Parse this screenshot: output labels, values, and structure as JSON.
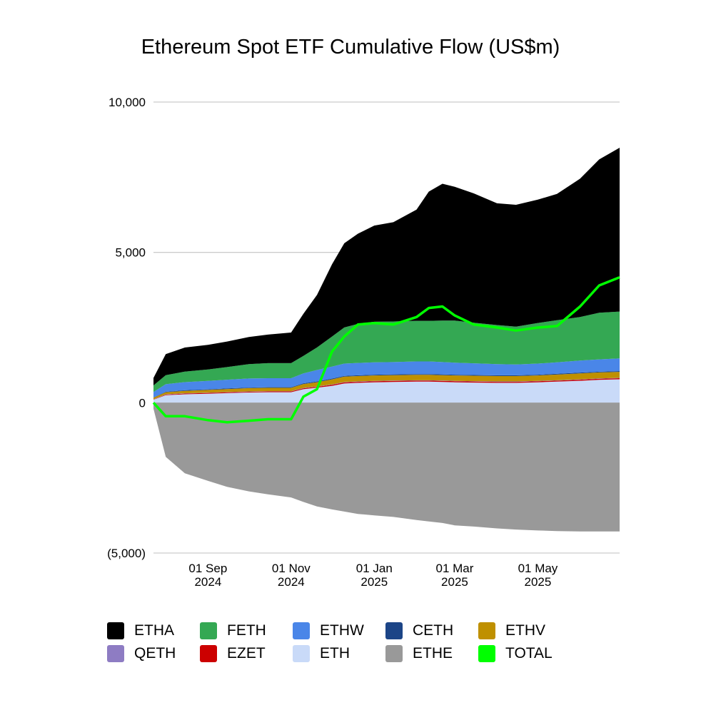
{
  "chart_data": {
    "type": "area",
    "title": "Ethereum Spot ETF Cumulative Flow (US$m)",
    "xlabel": "",
    "ylabel": "",
    "ylim": [
      -5000,
      10000
    ],
    "yticks": [
      {
        "value": 10000,
        "label": "10,000"
      },
      {
        "value": 5000,
        "label": "5,000"
      },
      {
        "value": 0,
        "label": "0"
      },
      {
        "value": -5000,
        "label": "(5,000)"
      }
    ],
    "xlim": [
      "2024-07-23",
      "2025-06-30"
    ],
    "xticks": [
      {
        "date": "2024-09-01",
        "label": [
          "01 Sep",
          "2024"
        ]
      },
      {
        "date": "2024-11-01",
        "label": [
          "01 Nov",
          "2024"
        ]
      },
      {
        "date": "2025-01-01",
        "label": [
          "01 Jan",
          "2025"
        ]
      },
      {
        "date": "2025-03-01",
        "label": [
          "01 Mar",
          "2025"
        ]
      },
      {
        "date": "2025-05-01",
        "label": [
          "01 May",
          "2025"
        ]
      }
    ],
    "grid": true,
    "legend_position": "bottom",
    "x": [
      "2024-07-23",
      "2024-08-01",
      "2024-08-15",
      "2024-09-01",
      "2024-09-15",
      "2024-10-01",
      "2024-10-15",
      "2024-11-01",
      "2024-11-10",
      "2024-11-20",
      "2024-12-01",
      "2024-12-10",
      "2024-12-20",
      "2025-01-01",
      "2025-01-15",
      "2025-02-01",
      "2025-02-10",
      "2025-02-20",
      "2025-03-01",
      "2025-03-15",
      "2025-04-01",
      "2025-04-15",
      "2025-05-01",
      "2025-05-15",
      "2025-06-01",
      "2025-06-15",
      "2025-06-30"
    ],
    "series": [
      {
        "name": "ETH",
        "color": "#c9daf8",
        "values": [
          100,
          250,
          280,
          300,
          320,
          340,
          350,
          350,
          450,
          500,
          560,
          640,
          660,
          680,
          690,
          700,
          700,
          690,
          680,
          670,
          660,
          660,
          680,
          700,
          730,
          760,
          780
        ]
      },
      {
        "name": "EZET",
        "color": "#cc0000",
        "values": [
          10,
          20,
          25,
          25,
          25,
          25,
          25,
          25,
          30,
          30,
          35,
          35,
          35,
          35,
          35,
          35,
          35,
          35,
          35,
          35,
          35,
          35,
          35,
          35,
          35,
          35,
          35
        ]
      },
      {
        "name": "QETH",
        "color": "#8e7cc3",
        "values": [
          5,
          10,
          10,
          10,
          10,
          10,
          10,
          10,
          12,
          12,
          12,
          12,
          12,
          12,
          12,
          12,
          12,
          12,
          12,
          12,
          12,
          12,
          12,
          12,
          12,
          12,
          12
        ]
      },
      {
        "name": "ETHV",
        "color": "#bf9000",
        "values": [
          50,
          70,
          80,
          90,
          100,
          110,
          110,
          110,
          130,
          140,
          170,
          180,
          180,
          180,
          180,
          180,
          180,
          180,
          180,
          180,
          180,
          180,
          180,
          190,
          200,
          200,
          200
        ]
      },
      {
        "name": "CETH",
        "color": "#1c4587",
        "values": [
          10,
          15,
          20,
          20,
          20,
          20,
          20,
          20,
          25,
          25,
          25,
          25,
          25,
          25,
          25,
          25,
          25,
          25,
          25,
          25,
          25,
          25,
          25,
          25,
          25,
          25,
          25
        ]
      },
      {
        "name": "ETHW",
        "color": "#4a86e8",
        "values": [
          180,
          250,
          270,
          280,
          290,
          300,
          300,
          300,
          330,
          380,
          400,
          410,
          410,
          410,
          410,
          420,
          420,
          410,
          400,
          390,
          370,
          360,
          370,
          380,
          400,
          410,
          420
        ]
      },
      {
        "name": "FETH",
        "color": "#34a853",
        "values": [
          220,
          300,
          350,
          380,
          420,
          480,
          500,
          500,
          580,
          750,
          1000,
          1200,
          1300,
          1350,
          1350,
          1350,
          1350,
          1380,
          1400,
          1350,
          1300,
          1260,
          1350,
          1400,
          1450,
          1550,
          1560
        ]
      },
      {
        "name": "ETHA",
        "color": "#000000",
        "values": [
          250,
          700,
          800,
          820,
          850,
          900,
          950,
          1020,
          1400,
          1750,
          2400,
          2800,
          3000,
          3200,
          3300,
          3700,
          4300,
          4550,
          4450,
          4300,
          4050,
          4050,
          4100,
          4200,
          4600,
          5100,
          5450
        ]
      },
      {
        "name": "ETHE",
        "color": "#999999",
        "values": [
          -200,
          -1800,
          -2350,
          -2600,
          -2800,
          -2950,
          -3050,
          -3150,
          -3300,
          -3450,
          -3550,
          -3620,
          -3700,
          -3750,
          -3800,
          -3900,
          -3950,
          -4000,
          -4080,
          -4120,
          -4180,
          -4220,
          -4250,
          -4270,
          -4280,
          -4280,
          -4280
        ]
      },
      {
        "name": "TOTAL",
        "color": "#00ff00",
        "type": "line",
        "values": [
          0,
          -450,
          -450,
          -580,
          -650,
          -600,
          -550,
          -550,
          200,
          450,
          1700,
          2200,
          2600,
          2650,
          2600,
          2850,
          3150,
          3200,
          2900,
          2600,
          2500,
          2400,
          2500,
          2550,
          3200,
          3900,
          4170
        ]
      }
    ]
  },
  "legend": {
    "rows": [
      [
        {
          "label": "ETHA",
          "color": "#000000"
        },
        {
          "label": "FETH",
          "color": "#34a853"
        },
        {
          "label": "ETHW",
          "color": "#4a86e8"
        },
        {
          "label": "CETH",
          "color": "#1c4587"
        },
        {
          "label": "ETHV",
          "color": "#bf9000"
        }
      ],
      [
        {
          "label": "QETH",
          "color": "#8e7cc3"
        },
        {
          "label": "EZET",
          "color": "#cc0000"
        },
        {
          "label": "ETH",
          "color": "#c9daf8"
        },
        {
          "label": "ETHE",
          "color": "#999999"
        },
        {
          "label": "TOTAL",
          "color": "#00ff00"
        }
      ]
    ]
  }
}
